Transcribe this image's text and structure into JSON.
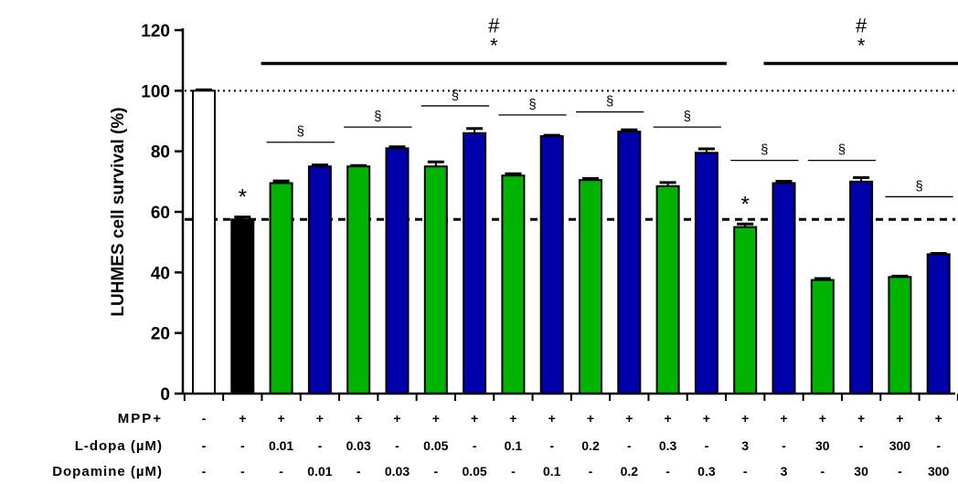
{
  "chart_data": {
    "type": "bar",
    "ylabel": "LUHMES cell survival (%)",
    "ylim": [
      0,
      120
    ],
    "yticks": [
      0,
      20,
      40,
      60,
      80,
      100,
      120
    ],
    "reference_lines": [
      {
        "y": 100,
        "style": "dotted"
      },
      {
        "y": 57.5,
        "style": "dashed"
      }
    ],
    "bars": [
      {
        "value": 100,
        "error": 0.3,
        "color": "#ffffff"
      },
      {
        "value": 57.5,
        "error": 0.8,
        "color": "#000000"
      },
      {
        "value": 69.5,
        "error": 0.7,
        "color": "#00b300"
      },
      {
        "value": 75,
        "error": 0.5,
        "color": "#0000aa"
      },
      {
        "value": 75,
        "error": 0.3,
        "color": "#00b300"
      },
      {
        "value": 81,
        "error": 0.5,
        "color": "#0000aa"
      },
      {
        "value": 75,
        "error": 1.5,
        "color": "#00b300"
      },
      {
        "value": 86,
        "error": 1.5,
        "color": "#0000aa"
      },
      {
        "value": 72,
        "error": 0.6,
        "color": "#00b300"
      },
      {
        "value": 85,
        "error": 0.3,
        "color": "#0000aa"
      },
      {
        "value": 70.5,
        "error": 0.5,
        "color": "#00b300"
      },
      {
        "value": 86.5,
        "error": 0.6,
        "color": "#0000aa"
      },
      {
        "value": 68.5,
        "error": 1.2,
        "color": "#00b300"
      },
      {
        "value": 79.5,
        "error": 1.3,
        "color": "#0000aa"
      },
      {
        "value": 55,
        "error": 1.0,
        "color": "#00b300"
      },
      {
        "value": 69.5,
        "error": 0.6,
        "color": "#0000aa"
      },
      {
        "value": 37.5,
        "error": 0.5,
        "color": "#00b300"
      },
      {
        "value": 70,
        "error": 1.3,
        "color": "#0000aa"
      },
      {
        "value": 38.5,
        "error": 0.3,
        "color": "#00b300"
      },
      {
        "value": 46,
        "error": 0.3,
        "color": "#0000aa"
      }
    ],
    "rows": [
      {
        "label": "MPP+",
        "values": [
          "-",
          "+",
          "+",
          "+",
          "+",
          "+",
          "+",
          "+",
          "+",
          "+",
          "+",
          "+",
          "+",
          "+",
          "+",
          "+",
          "+",
          "+",
          "+",
          "+"
        ]
      },
      {
        "label": "L-dopa (µM)",
        "values": [
          "-",
          "-",
          "0.01",
          "-",
          "0.03",
          "-",
          "0.05",
          "-",
          "0.1",
          "-",
          "0.2",
          "-",
          "0.3",
          "-",
          "3",
          "-",
          "30",
          "-",
          "300",
          "-"
        ]
      },
      {
        "label": "Dopamine (µM)",
        "values": [
          "-",
          "-",
          "-",
          "0.01",
          "-",
          "0.03",
          "-",
          "0.05",
          "-",
          "0.1",
          "-",
          "0.2",
          "-",
          "0.3",
          "-",
          "3",
          "-",
          "30",
          "-",
          "300"
        ]
      }
    ],
    "bar_asterisks": [
      {
        "bar": 1,
        "text": "*"
      },
      {
        "bar": 14,
        "text": "*"
      }
    ],
    "section_pairs": [
      {
        "bars": [
          2,
          3
        ],
        "y": 83,
        "text": "§"
      },
      {
        "bars": [
          4,
          5
        ],
        "y": 88,
        "text": "§"
      },
      {
        "bars": [
          6,
          7
        ],
        "y": 95,
        "text": "§"
      },
      {
        "bars": [
          8,
          9
        ],
        "y": 92,
        "text": "§"
      },
      {
        "bars": [
          10,
          11
        ],
        "y": 93,
        "text": "§"
      },
      {
        "bars": [
          12,
          13
        ],
        "y": 88,
        "text": "§"
      },
      {
        "bars": [
          14,
          15
        ],
        "y": 77,
        "text": "§"
      },
      {
        "bars": [
          16,
          17
        ],
        "y": 77,
        "text": "§"
      },
      {
        "bars": [
          18,
          19
        ],
        "y": 65,
        "text": "§"
      }
    ],
    "group_brackets": [
      {
        "bars": [
          2,
          13
        ],
        "y": 109,
        "lines": [
          "#",
          "*"
        ]
      },
      {
        "bars": [
          15,
          19
        ],
        "y": 109,
        "lines": [
          "#",
          "*"
        ]
      }
    ]
  }
}
